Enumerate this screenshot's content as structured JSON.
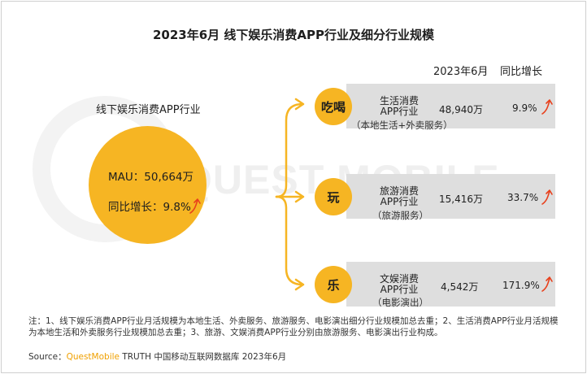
{
  "title": "2023年6月 线下娱乐消费APP行业及细分行业规模",
  "watermark": "QUEST MOBILE",
  "column_headers": {
    "period": "2023年6月",
    "growth": "同比增长"
  },
  "industry": {
    "label": "线下娱乐消费APP行业",
    "mau_line": "MAU：50,664万",
    "yoy_line": "同比增长：9.8%"
  },
  "chart_data": {
    "type": "table",
    "title": "2023年6月 线下娱乐消费APP行业及细分行业规模",
    "columns": [
      "2023年6月",
      "同比增长"
    ],
    "total": {
      "name": "线下娱乐消费APP行业",
      "mau": 50664,
      "mau_unit": "万",
      "yoy_pct": 9.8
    },
    "segments": [
      {
        "icon": "吃喝",
        "name_line1": "生活消费",
        "name_line2": "APP行业",
        "sub": "（本地生活+外卖服务）",
        "value_text": "48,940万",
        "value": 48940,
        "growth_text": "9.9%",
        "growth": 9.9
      },
      {
        "icon": "玩",
        "name_line1": "旅游消费",
        "name_line2": "APP行业",
        "sub": "（旅游服务）",
        "value_text": "15,416万",
        "value": 15416,
        "growth_text": "33.7%",
        "growth": 33.7
      },
      {
        "icon": "乐",
        "name_line1": "文娱消费",
        "name_line2": "APP行业",
        "sub": "（电影演出）",
        "value_text": "4,542万",
        "value": 4542,
        "growth_text": "171.9%",
        "growth": 171.9
      }
    ]
  },
  "colors": {
    "accent": "#f6b523",
    "bar": "#dedede",
    "arrow": "#e8401c"
  },
  "note": "注：1、线下娱乐消费APP行业月活规模为本地生活、外卖服务、旅游服务、电影演出细分行业规模加总去重；2、生活消费APP行业月活规模为本地生活和外卖服务行业规模加总去重；3、旅游、文娱消费APP行业分别由旅游服务、电影演出行业构成。",
  "source": {
    "prefix": "Source：",
    "brand": "QuestMobile",
    "rest": " TRUTH 中国移动互联网数据库 2023年6月"
  }
}
